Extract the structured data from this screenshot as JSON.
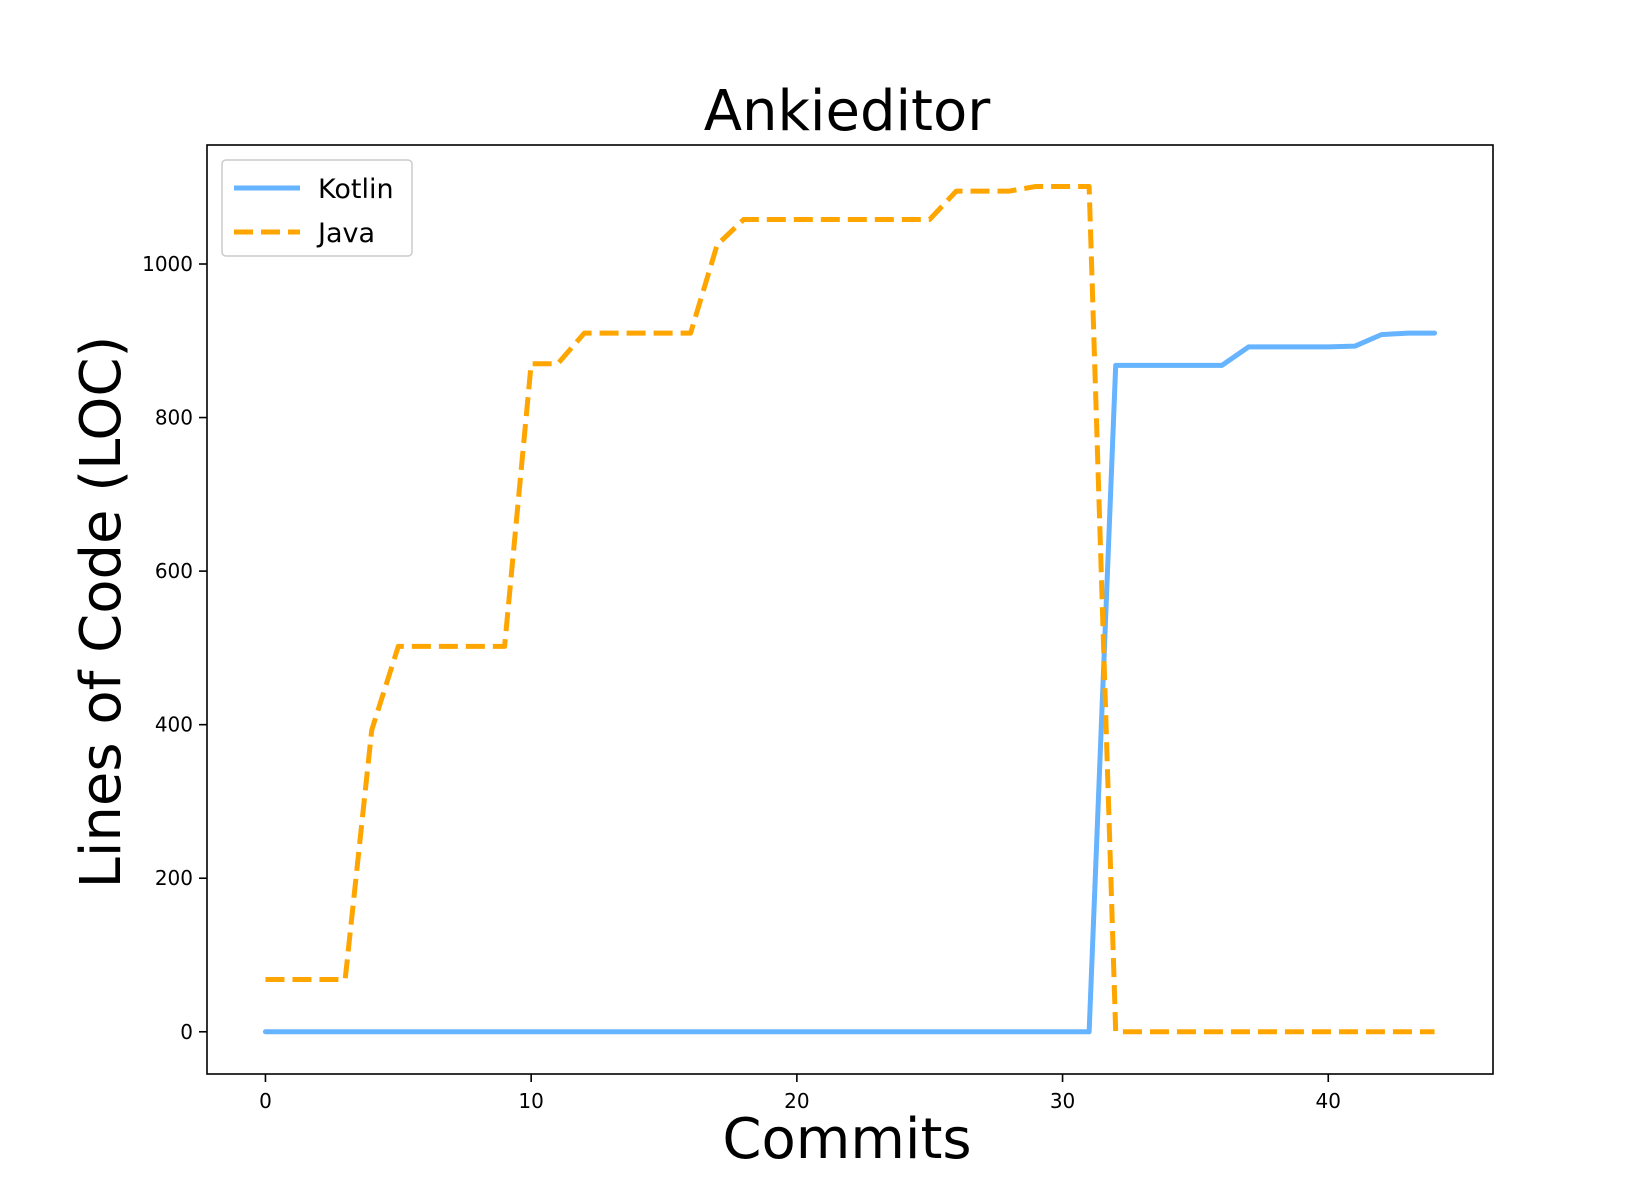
{
  "chart_data": {
    "type": "line",
    "title": "Ankieditor",
    "xlabel": "Commits",
    "ylabel": "Lines of Code (LOC)",
    "xlim": [
      -2.2,
      46.2
    ],
    "ylim": [
      -55,
      1155
    ],
    "xticks": [
      0,
      10,
      20,
      30,
      40
    ],
    "yticks": [
      0,
      200,
      400,
      600,
      800,
      1000
    ],
    "grid": false,
    "legend_position": "top-left",
    "series": [
      {
        "name": "Kotlin",
        "color": "#66b3ff",
        "style": "solid",
        "x": [
          0,
          1,
          2,
          3,
          4,
          5,
          6,
          7,
          8,
          9,
          10,
          11,
          12,
          13,
          14,
          15,
          16,
          17,
          18,
          19,
          20,
          21,
          22,
          23,
          24,
          25,
          26,
          27,
          28,
          29,
          30,
          31,
          32,
          33,
          34,
          35,
          36,
          37,
          38,
          39,
          40,
          41,
          42,
          43,
          44
        ],
        "values": [
          0,
          0,
          0,
          0,
          0,
          0,
          0,
          0,
          0,
          0,
          0,
          0,
          0,
          0,
          0,
          0,
          0,
          0,
          0,
          0,
          0,
          0,
          0,
          0,
          0,
          0,
          0,
          0,
          0,
          0,
          0,
          0,
          868,
          868,
          868,
          868,
          868,
          892,
          892,
          892,
          892,
          893,
          908,
          910,
          910
        ]
      },
      {
        "name": "Java",
        "color": "#ffa500",
        "style": "dashed",
        "x": [
          0,
          1,
          2,
          3,
          4,
          5,
          6,
          7,
          8,
          9,
          10,
          11,
          12,
          13,
          14,
          15,
          16,
          17,
          18,
          19,
          20,
          21,
          22,
          23,
          24,
          25,
          26,
          27,
          28,
          29,
          30,
          31,
          32,
          33,
          34,
          35,
          36,
          37,
          38,
          39,
          40,
          41,
          42,
          43,
          44
        ],
        "values": [
          68,
          68,
          68,
          68,
          393,
          502,
          502,
          502,
          502,
          502,
          870,
          870,
          910,
          910,
          910,
          910,
          910,
          1025,
          1058,
          1058,
          1058,
          1058,
          1058,
          1058,
          1058,
          1058,
          1095,
          1095,
          1095,
          1101,
          1101,
          1101,
          0,
          0,
          0,
          0,
          0,
          0,
          0,
          0,
          0,
          0,
          0,
          0,
          0
        ]
      }
    ]
  }
}
